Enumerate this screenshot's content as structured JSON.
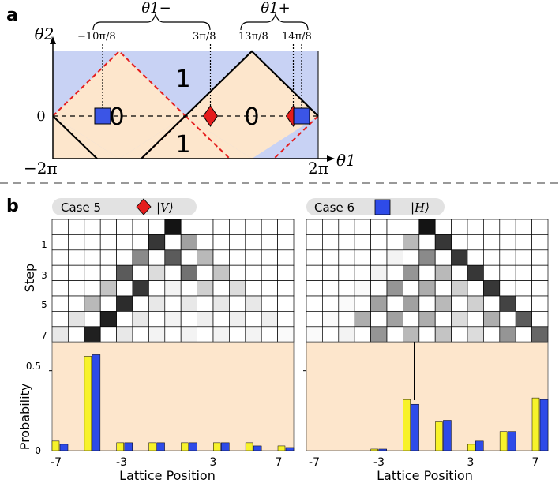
{
  "panel_a": {
    "label": "a",
    "y_axis_label": "θ2",
    "x_axis_label": "θ1",
    "x_min_label": "−2π",
    "x_max_label": "2π",
    "y_zero_label": "0",
    "brace_left_label": "θ1−",
    "brace_right_label": "θ1+",
    "markers": [
      {
        "text": "−10π/8",
        "theta_over_pi": -1.25,
        "shape": "square"
      },
      {
        "text": "3π/8",
        "theta_over_pi": 0.375,
        "shape": "diamond"
      },
      {
        "text": "13π/8",
        "theta_over_pi": 1.625,
        "shape": "diamond"
      },
      {
        "text": "14π/8",
        "theta_over_pi": 1.75,
        "shape": "square"
      }
    ],
    "region_labels": [
      {
        "text": "1",
        "pos": "upper-middle"
      },
      {
        "text": "0",
        "pos": "left"
      },
      {
        "text": "0",
        "pos": "right"
      },
      {
        "text": "1",
        "pos": "lower-middle"
      }
    ],
    "colors": {
      "region_0": "#fde6cc",
      "region_1": "#c8d2f4",
      "square": "#3b55e6",
      "diamond": "#e51c1c",
      "dashed": "#e51c1c"
    }
  },
  "panel_b": {
    "label": "b",
    "step_axis_label": "Step",
    "step_ticks": [
      "1",
      "3",
      "5",
      "7"
    ],
    "prob_axis_label": "Probability",
    "prob_ticks": [
      "0.5",
      "0"
    ],
    "x_axis_label": "Lattice Position",
    "x_ticks": [
      "-7",
      "-3",
      "3",
      "7"
    ],
    "colors": {
      "bar_theory": "#f7f22a",
      "bar_experiment": "#2e4be8",
      "background": "#fde6cc"
    }
  },
  "chart_data": [
    {
      "type": "bar",
      "title": "Case 5",
      "legend": "|V⟩",
      "xlabel": "Lattice Position",
      "ylabel": "Probability",
      "ylim": [
        0,
        0.68
      ],
      "x": [
        -7,
        -5,
        -3,
        -1,
        1,
        3,
        5,
        7
      ],
      "series": [
        {
          "values": [
            0.06,
            0.59,
            0.05,
            0.05,
            0.05,
            0.05,
            0.05,
            0.03
          ]
        },
        {
          "values": [
            0.04,
            0.6,
            0.05,
            0.05,
            0.05,
            0.05,
            0.03,
            0.02
          ]
        }
      ],
      "walk_grid_intensity": [
        [
          0,
          0,
          0,
          0,
          0,
          0,
          0,
          1,
          0,
          0,
          0,
          0,
          0,
          0,
          0
        ],
        [
          0,
          0,
          0,
          0,
          0,
          0,
          0.85,
          0,
          0.4,
          0,
          0,
          0,
          0,
          0,
          0
        ],
        [
          0,
          0,
          0,
          0,
          0,
          0.5,
          0,
          0.7,
          0,
          0.3,
          0,
          0,
          0,
          0,
          0
        ],
        [
          0,
          0,
          0,
          0,
          0.7,
          0,
          0.15,
          0,
          0.6,
          0,
          0.25,
          0,
          0,
          0,
          0
        ],
        [
          0,
          0,
          0,
          0.25,
          0,
          0.85,
          0,
          0.05,
          0,
          0.2,
          0,
          0.15,
          0,
          0,
          0
        ],
        [
          0,
          0,
          0.3,
          0,
          0.9,
          0,
          0.1,
          0,
          0.1,
          0,
          0.1,
          0,
          0.1,
          0,
          0
        ],
        [
          0,
          0.12,
          0,
          0.95,
          0,
          0.1,
          0,
          0.05,
          0,
          0.07,
          0,
          0.07,
          0,
          0.07,
          0
        ],
        [
          0.1,
          0,
          0.95,
          0,
          0.1,
          0,
          0.05,
          0,
          0.05,
          0,
          0.05,
          0,
          0.05,
          0,
          0.02
        ]
      ]
    },
    {
      "type": "bar",
      "title": "Case 6",
      "legend": "|H⟩",
      "xlabel": "Lattice Position",
      "ylabel": "Probability",
      "ylim": [
        0,
        0.68
      ],
      "x": [
        -7,
        -5,
        -3,
        -1,
        1,
        3,
        5,
        7
      ],
      "series": [
        {
          "values": [
            0,
            0,
            0.01,
            0.32,
            0.18,
            0.04,
            0.12,
            0.33
          ]
        },
        {
          "values": [
            0,
            0,
            0.01,
            0.29,
            0.19,
            0.06,
            0.12,
            0.32
          ]
        }
      ],
      "walk_grid_intensity": [
        [
          0,
          0,
          0,
          0,
          0,
          0,
          0,
          1,
          0,
          0,
          0,
          0,
          0,
          0,
          0
        ],
        [
          0,
          0,
          0,
          0,
          0,
          0,
          0.3,
          0,
          0.85,
          0,
          0,
          0,
          0,
          0,
          0
        ],
        [
          0,
          0,
          0,
          0,
          0,
          0.05,
          0,
          0.5,
          0,
          0.85,
          0,
          0,
          0,
          0,
          0
        ],
        [
          0,
          0,
          0,
          0,
          0.05,
          0,
          0.45,
          0,
          0.3,
          0,
          0.85,
          0,
          0,
          0,
          0
        ],
        [
          0,
          0,
          0,
          0.02,
          0,
          0.45,
          0,
          0.35,
          0,
          0.2,
          0,
          0.85,
          0,
          0,
          0
        ],
        [
          0,
          0,
          0.02,
          0,
          0.4,
          0,
          0.4,
          0,
          0.3,
          0,
          0.2,
          0,
          0.8,
          0,
          0
        ],
        [
          0,
          0.02,
          0,
          0.35,
          0,
          0.4,
          0,
          0.35,
          0,
          0.15,
          0,
          0.35,
          0,
          0.7,
          0
        ],
        [
          0.02,
          0,
          0.05,
          0,
          0.45,
          0,
          0.3,
          0,
          0.25,
          0,
          0.15,
          0,
          0.45,
          0,
          0.65
        ]
      ]
    }
  ]
}
